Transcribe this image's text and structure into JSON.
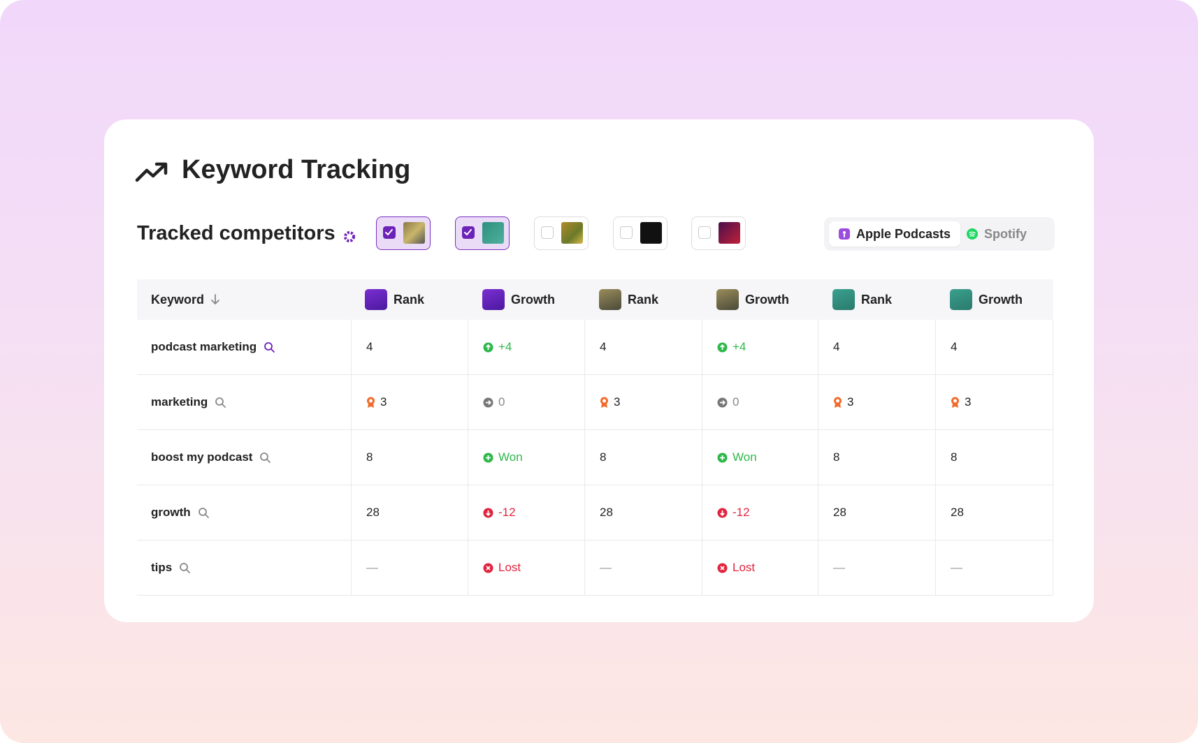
{
  "header": {
    "title": "Keyword Tracking"
  },
  "competitors": {
    "label": "Tracked competitors",
    "items": [
      {
        "checked": true
      },
      {
        "checked": true
      },
      {
        "checked": false
      },
      {
        "checked": false
      },
      {
        "checked": false
      }
    ]
  },
  "platform_toggle": {
    "options": [
      "Apple Podcasts",
      "Spotify"
    ],
    "selected": 0
  },
  "table": {
    "columns": [
      "Keyword",
      "Rank",
      "Growth",
      "Rank",
      "Growth",
      "Rank",
      "Growth"
    ],
    "rows": [
      [
        "podcast marketing",
        "4",
        "+4",
        "4",
        "+4",
        "4",
        "4"
      ],
      [
        "marketing",
        "3",
        "0",
        "3",
        "0",
        "3",
        "3"
      ],
      [
        "boost my podcast",
        "8",
        "Won",
        "8",
        "Won",
        "8",
        "8"
      ],
      [
        "growth",
        "28",
        "-12",
        "28",
        "-12",
        "28",
        "28"
      ],
      [
        "tips",
        "—",
        "Lost",
        "—",
        "Lost",
        "—",
        "—"
      ]
    ]
  }
}
